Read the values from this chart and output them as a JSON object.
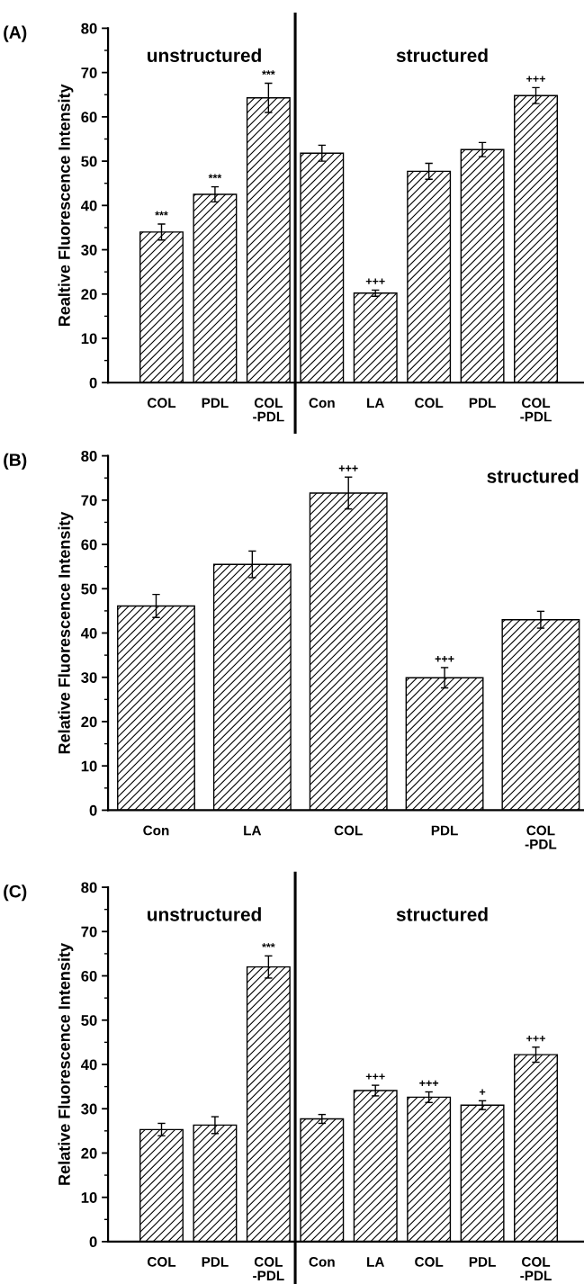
{
  "chart_data": [
    {
      "type": "bar",
      "title": "(A)",
      "ylabel": "Realtive Fluorescence Intensity",
      "categories": [
        "COL",
        "PDL",
        "COL\n-PDL",
        "Con",
        "LA",
        "COL",
        "PDL",
        "COL\n-PDL"
      ],
      "values": [
        34.0,
        42.5,
        64.3,
        51.8,
        20.2,
        47.7,
        52.6,
        64.8
      ],
      "errors": [
        1.8,
        1.7,
        3.3,
        1.8,
        0.7,
        1.8,
        1.6,
        1.8
      ],
      "value_labels": [
        "***",
        "***",
        "***",
        null,
        "+++",
        null,
        null,
        "+++"
      ],
      "color": "#000000",
      "ylim": [
        0,
        80
      ],
      "yticks": [
        0,
        10,
        20,
        30,
        40,
        50,
        60,
        70,
        80
      ],
      "annotations": [
        "unstructured",
        "structured"
      ],
      "grid": false,
      "legend": false
    },
    {
      "type": "bar",
      "title": "(B)",
      "ylabel": "Relative Fluorescence Intensity",
      "categories": [
        "Con",
        "LA",
        "COL",
        "PDL",
        "COL\n-PDL"
      ],
      "values": [
        46.1,
        55.5,
        71.6,
        29.9,
        43.0
      ],
      "errors": [
        2.6,
        3.0,
        3.6,
        2.3,
        1.9
      ],
      "value_labels": [
        null,
        null,
        "+++",
        "+++",
        null
      ],
      "color": "#000000",
      "ylim": [
        0,
        80
      ],
      "yticks": [
        0,
        10,
        20,
        30,
        40,
        50,
        60,
        70,
        80
      ],
      "annotations": [
        "structured"
      ],
      "grid": false,
      "legend": false
    },
    {
      "type": "bar",
      "title": "(C)",
      "ylabel": "Relative Fluorescence Intensity",
      "categories": [
        "COL",
        "PDL",
        "COL\n-PDL",
        "Con",
        "LA",
        "COL",
        "PDL",
        "COL\n-PDL"
      ],
      "values": [
        25.3,
        26.3,
        62.0,
        27.7,
        34.1,
        32.6,
        30.8,
        42.2
      ],
      "errors": [
        1.4,
        1.9,
        2.5,
        1.0,
        1.2,
        1.2,
        1.0,
        1.7
      ],
      "value_labels": [
        null,
        null,
        "***",
        null,
        "+++",
        "+++",
        "+",
        "+++"
      ],
      "color": "#000000",
      "ylim": [
        0,
        80
      ],
      "yticks": [
        0,
        10,
        20,
        30,
        40,
        50,
        60,
        70,
        80
      ],
      "annotations": [
        "unstructured",
        "structured"
      ],
      "grid": false,
      "legend": false
    }
  ]
}
